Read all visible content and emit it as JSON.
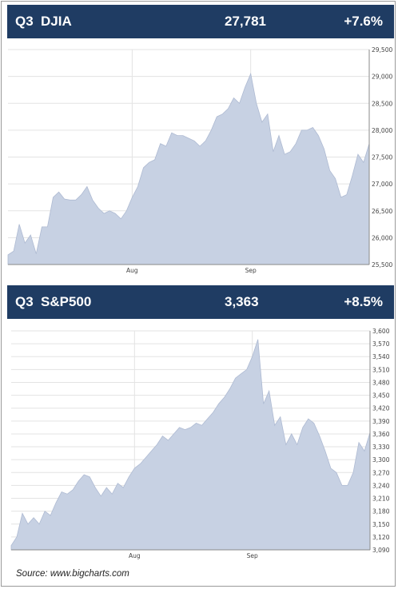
{
  "colors": {
    "header_bg": "#1f3c63",
    "area_fill": "#c7d1e3",
    "area_line": "#aebad2",
    "grid": "#e3e3e3"
  },
  "panels": [
    {
      "quarter": "Q3",
      "name": "DJIA",
      "value": "27,781",
      "change": "+7.6%"
    },
    {
      "quarter": "Q3",
      "name": "S&P500",
      "value": "3,363",
      "change": "+8.5%"
    }
  ],
  "source": "Source: www.bigcharts.com",
  "chart_data": [
    {
      "type": "area",
      "series_key": "DJIA",
      "ylim": [
        25500,
        29500
      ],
      "yticks": [
        25500,
        26000,
        26500,
        27000,
        27500,
        28000,
        28500,
        29000,
        29500
      ],
      "ytick_labels": [
        "25,500",
        "26,000",
        "26,500",
        "27,000",
        "27,500",
        "28,000",
        "28,500",
        "29,000",
        "29,500"
      ],
      "xlim": [
        0,
        64
      ],
      "xticks": [
        {
          "x": 22,
          "label": "Aug"
        },
        {
          "x": 43,
          "label": "Sep"
        }
      ],
      "x_axis_position": "bottom",
      "y_axis_position": "right",
      "grid": true,
      "values": [
        25680,
        25750,
        26250,
        25900,
        26050,
        25700,
        26200,
        26200,
        26750,
        26850,
        26720,
        26700,
        26700,
        26800,
        26950,
        26700,
        26550,
        26450,
        26500,
        26450,
        26350,
        26500,
        26750,
        26950,
        27300,
        27400,
        27450,
        27750,
        27700,
        27950,
        27900,
        27900,
        27850,
        27800,
        27700,
        27800,
        28000,
        28250,
        28300,
        28400,
        28600,
        28500,
        28800,
        29050,
        28500,
        28150,
        28300,
        27600,
        27900,
        27550,
        27600,
        27750,
        28000,
        28000,
        28050,
        27900,
        27650,
        27250,
        27100,
        26750,
        26800,
        27150,
        27550,
        27400,
        27750
      ]
    },
    {
      "type": "area",
      "series_key": "S&P500",
      "ylim": [
        3090,
        3600
      ],
      "yticks": [
        3090,
        3120,
        3150,
        3180,
        3210,
        3240,
        3270,
        3300,
        3330,
        3360,
        3390,
        3420,
        3450,
        3480,
        3510,
        3540,
        3570,
        3600
      ],
      "ytick_labels": [
        "3,090",
        "3,120",
        "3,150",
        "3,180",
        "3,210",
        "3,240",
        "3,270",
        "3,300",
        "3,330",
        "3,360",
        "3,390",
        "3,420",
        "3,450",
        "3,480",
        "3,510",
        "3,540",
        "3,570",
        "3,600"
      ],
      "xlim": [
        0,
        64
      ],
      "xticks": [
        {
          "x": 22,
          "label": "Aug"
        },
        {
          "x": 43,
          "label": "Sep"
        }
      ],
      "x_axis_position": "bottom",
      "y_axis_position": "right",
      "grid": true,
      "values": [
        3100,
        3120,
        3175,
        3150,
        3165,
        3150,
        3180,
        3170,
        3200,
        3225,
        3220,
        3230,
        3250,
        3265,
        3260,
        3235,
        3215,
        3235,
        3220,
        3245,
        3235,
        3260,
        3280,
        3290,
        3305,
        3320,
        3335,
        3355,
        3345,
        3360,
        3375,
        3370,
        3375,
        3385,
        3380,
        3395,
        3410,
        3430,
        3445,
        3465,
        3490,
        3500,
        3510,
        3540,
        3580,
        3430,
        3460,
        3380,
        3400,
        3335,
        3360,
        3335,
        3375,
        3395,
        3385,
        3355,
        3320,
        3280,
        3270,
        3240,
        3240,
        3270,
        3340,
        3320,
        3363
      ]
    }
  ]
}
